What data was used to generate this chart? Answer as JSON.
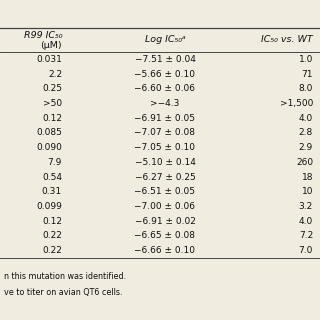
{
  "col1_header_line1": "R99 IC",
  "col1_header_line1_sub": "50",
  "col1_header_line2": "(μM)",
  "col2_header": "Log IC",
  "col2_header_sub": "50",
  "col2_header_sup": "a",
  "col3_header": "IC",
  "col3_header_sub": "50",
  "col3_header_rest": " vs. WT",
  "rows": [
    [
      "0.031",
      "−7.51 ± 0.04",
      "1.0"
    ],
    [
      "2.2",
      "−5.66 ± 0.10",
      "71"
    ],
    [
      "0.25",
      "−6.60 ± 0.06",
      "8.0"
    ],
    [
      ">50",
      ">−4.3",
      ">1,500"
    ],
    [
      "0.12",
      "−6.91 ± 0.05",
      "4.0"
    ],
    [
      "0.085",
      "−7.07 ± 0.08",
      "2.8"
    ],
    [
      "0.090",
      "−7.05 ± 0.10",
      "2.9"
    ],
    [
      "7.9",
      "−5.10 ± 0.14",
      "260"
    ],
    [
      "0.54",
      "−6.27 ± 0.25",
      "18"
    ],
    [
      "0.31",
      "−6.51 ± 0.05",
      "10"
    ],
    [
      "0.099",
      "−7.00 ± 0.06",
      "3.2"
    ],
    [
      "0.12",
      "−6.91 ± 0.02",
      "4.0"
    ],
    [
      "0.22",
      "−6.65 ± 0.08",
      "7.2"
    ],
    [
      "0.22",
      "−6.66 ± 0.10",
      "7.0"
    ]
  ],
  "footnote1": "n this mutation was identified.",
  "footnote2": "ve to titer on avian QT6 cells.",
  "bg_color": "#f0ece0",
  "line_color": "#444444",
  "text_color": "#111111",
  "header_fontsize": 6.8,
  "row_fontsize": 6.5,
  "footnote_fontsize": 5.8
}
